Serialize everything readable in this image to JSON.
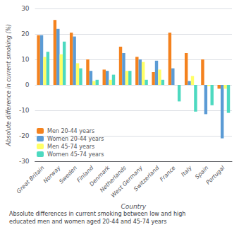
{
  "chart_data": {
    "type": "bar",
    "categories": [
      "Great Britain",
      "Norway",
      "Sweden",
      "Finland",
      "Denmark",
      "Netherlands",
      "West Germany",
      "Switzerland",
      "France",
      "Italy",
      "Spain",
      "Portugal"
    ],
    "series": [
      {
        "name": "Men 20-44 years",
        "color": "#F4821E",
        "values": [
          19.5,
          25.5,
          20.5,
          10.0,
          6.0,
          15.0,
          11.0,
          5.0,
          20.5,
          12.5,
          10.0,
          -1.5
        ]
      },
      {
        "name": "Women 20-44 years",
        "color": "#5B9BD5",
        "values": [
          19.5,
          22.0,
          19.0,
          5.5,
          5.5,
          12.5,
          10.0,
          9.5,
          6.5,
          1.5,
          -11.5,
          -21.0
        ]
      },
      {
        "name": "Men 45-74 years",
        "color": "#FFFF66",
        "values": [
          11.0,
          12.0,
          8.5,
          1.5,
          2.0,
          5.5,
          9.0,
          6.0,
          0.0,
          3.5,
          -0.5,
          -1.5
        ]
      },
      {
        "name": "Women 45-74 years",
        "color": "#4DD9C0",
        "values": [
          13.0,
          17.0,
          6.5,
          2.0,
          4.0,
          5.5,
          2.0,
          2.0,
          -6.5,
          -10.5,
          -8.0,
          -11.0
        ]
      }
    ],
    "ylim": [
      -30,
      30
    ],
    "yticks": [
      -30,
      -20,
      -10,
      0,
      10,
      20,
      30
    ],
    "ylabel": "Absolute difference in current smoking (%)",
    "xlabel": "Country",
    "caption": "Absolute differences in current smoking between low and high\neducated men and women aged 20-44 and 45-74 years",
    "grid": true,
    "legend": "lower left"
  }
}
